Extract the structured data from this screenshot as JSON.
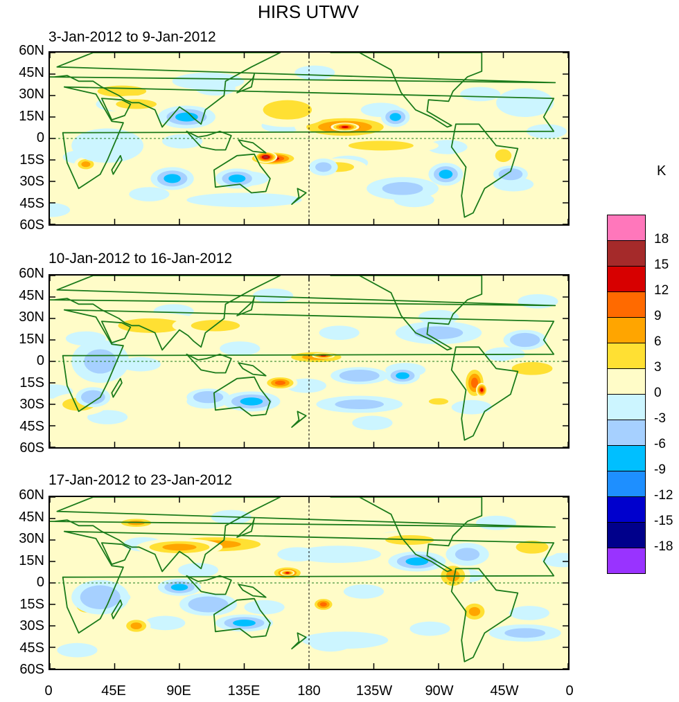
{
  "title": "HIRS UTWV",
  "panels": [
    {
      "label": "3-Jan-2012 to 9-Jan-2012"
    },
    {
      "label": "10-Jan-2012 to 16-Jan-2012"
    },
    {
      "label": "17-Jan-2012 to 23-Jan-2012"
    }
  ],
  "lat_labels": [
    "60N",
    "45N",
    "30N",
    "15N",
    "0",
    "15S",
    "30S",
    "45S",
    "60S"
  ],
  "lon_labels": [
    "0",
    "45E",
    "90E",
    "135E",
    "180",
    "135W",
    "90W",
    "45W",
    "0"
  ],
  "colorbar": {
    "unit": "K",
    "levels": [
      "18",
      "15",
      "12",
      "9",
      "6",
      "3",
      "0",
      "-3",
      "-6",
      "-9",
      "-12",
      "-15",
      "-18"
    ],
    "colors": [
      "#ff77bb",
      "#a52a2a",
      "#d70000",
      "#ff6a00",
      "#ffa500",
      "#ffe033",
      "#fffcc8",
      "#ccf5ff",
      "#a6d0ff",
      "#00bfff",
      "#1e8fff",
      "#0000cd",
      "#00008b",
      "#9933ff"
    ]
  },
  "colors": {
    "coast": "#1a7a1a",
    "grid": "#1a7a1a"
  }
}
